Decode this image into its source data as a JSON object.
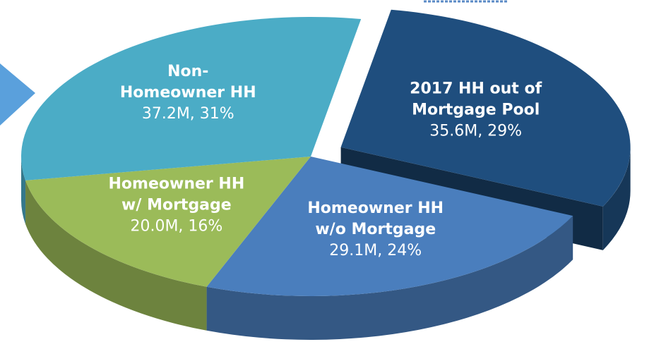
{
  "chart_data": {
    "type": "pie",
    "categories": [
      "2017 HH out of\nMortgage Pool",
      "Homeowner HH\nw/o Mortgage",
      "Homeowner HH\nw/ Mortgage",
      "Non-\nHomeowner HH"
    ],
    "values": [
      35.6,
      29.1,
      20.0,
      37.2
    ],
    "value_labels": [
      "35.6M, 29%",
      "29.1M, 24%",
      "20.0M, 16%",
      "37.2M, 31%"
    ],
    "colors": [
      "#1f4e7e",
      "#4a7ebd",
      "#9bbb59",
      "#4bacc6"
    ],
    "explode": [
      true,
      false,
      false,
      false
    ],
    "three_d": true
  }
}
